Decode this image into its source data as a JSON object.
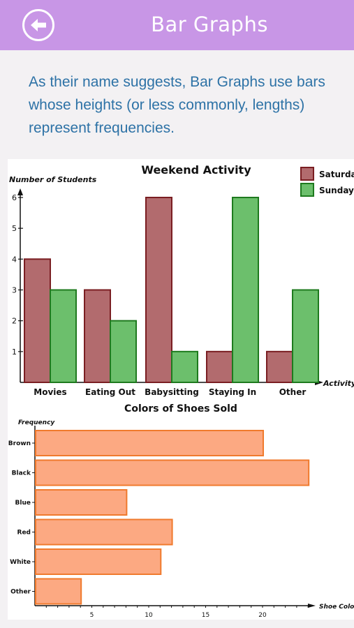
{
  "header": {
    "title": "Bar Graphs",
    "back_icon": "back-arrow-icon"
  },
  "intro": {
    "text": "As their name suggests, Bar Graphs use bars whose heights (or less commonly, lengths) represent frequencies."
  },
  "colors": {
    "header_bg": "#c896e6",
    "intro_text": "#2d72a6",
    "saturday_fill": "#b26b6e",
    "saturday_stroke": "#7a1e22",
    "sunday_fill": "#6cbf6c",
    "sunday_stroke": "#1e7a1e",
    "shoe_fill": "#fca982",
    "shoe_stroke": "#f07a2d"
  },
  "chart_data": [
    {
      "type": "bar",
      "title": "Weekend Activity",
      "xlabel": "Activity",
      "ylabel": "Number of Students",
      "categories": [
        "Movies",
        "Eating Out",
        "Babysitting",
        "Staying In",
        "Other"
      ],
      "series": [
        {
          "name": "Saturday",
          "values": [
            4,
            3,
            6,
            1,
            1
          ]
        },
        {
          "name": "Sunday",
          "values": [
            3,
            2,
            1,
            6,
            3
          ]
        }
      ],
      "yticks": [
        1,
        2,
        3,
        4,
        5,
        6
      ],
      "ylim": [
        0,
        6
      ],
      "legend": "top-right",
      "grid": false
    },
    {
      "type": "bar",
      "orientation": "horizontal",
      "title": "Colors of Shoes Sold",
      "xlabel": "Shoe Color",
      "ylabel": "Frequency",
      "categories": [
        "Brown",
        "Black",
        "Blue",
        "Red",
        "White",
        "Other"
      ],
      "values": [
        20,
        24,
        8,
        12,
        11,
        4
      ],
      "xticks": [
        5,
        10,
        15,
        20
      ],
      "xlim": [
        0,
        25
      ],
      "grid": false
    }
  ]
}
